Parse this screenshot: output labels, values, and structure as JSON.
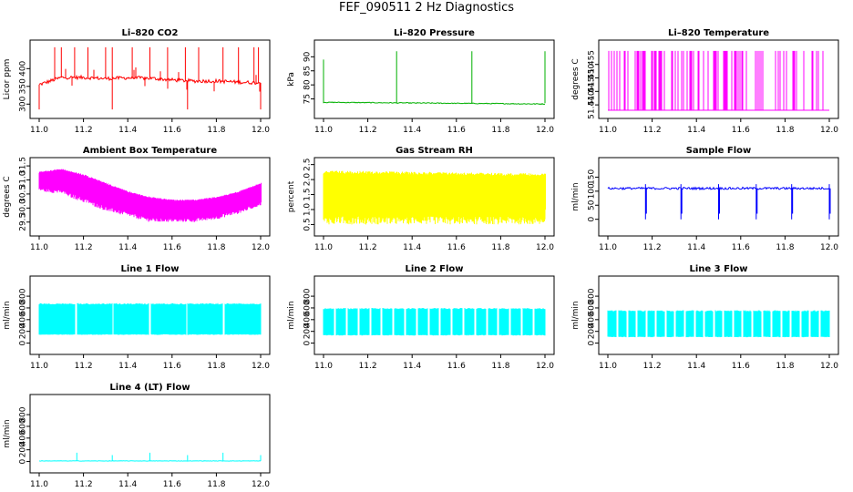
{
  "figure": {
    "title": "FEF_090511  2 Hz Diagnostics"
  },
  "chart_data": [
    {
      "id": "co2",
      "type": "line",
      "title": "Li–820 CO2",
      "xlabel": "",
      "ylabel": "Licor ppm",
      "xlim": [
        11.0,
        12.0
      ],
      "ylim": [
        275,
        465
      ],
      "xticks": [
        11.0,
        11.2,
        11.4,
        11.6,
        11.8,
        12.0
      ],
      "yticks": [
        300,
        350,
        400
      ],
      "color": "#ff0000",
      "signal": {
        "kind": "co2",
        "base": 355,
        "spread": 5,
        "spike_top": 460,
        "spike_low": 285
      },
      "series": [
        {
          "x": [
            11.0,
            11.1,
            11.2,
            11.3,
            11.4,
            11.5,
            11.6,
            11.7,
            11.8,
            11.9,
            12.0
          ],
          "values": [
            355,
            375,
            375,
            372,
            374,
            373,
            368,
            365,
            365,
            362,
            360
          ]
        }
      ]
    },
    {
      "id": "pressure",
      "type": "line",
      "title": "Li–820 Pressure",
      "xlabel": "",
      "ylabel": "kPa",
      "xlim": [
        11.0,
        12.0
      ],
      "ylim": [
        70,
        94
      ],
      "xticks": [
        11.0,
        11.2,
        11.4,
        11.6,
        11.8,
        12.0
      ],
      "yticks": [
        75,
        80,
        85,
        90
      ],
      "color": "#00b000",
      "signal": {
        "kind": "pressure",
        "base": 73.5,
        "spikes_x": [
          11.0,
          11.33,
          11.67,
          12.0
        ],
        "spike_top": 92
      },
      "series": [
        {
          "x": [
            11.0,
            12.0
          ],
          "values": [
            73.8,
            73.2
          ]
        }
      ]
    },
    {
      "id": "temperature",
      "type": "line",
      "title": "Li–820 Temperature",
      "xlabel": "",
      "ylabel": "degrees C",
      "xlim": [
        11.0,
        12.0
      ],
      "ylim": [
        51.437,
        51.462
      ],
      "xticks": [
        11.0,
        11.2,
        11.4,
        11.6,
        11.8,
        12.0
      ],
      "yticks": [
        51.44,
        51.445,
        51.45,
        51.455
      ],
      "color": "#ff00ff",
      "signal": {
        "kind": "binary",
        "low": 51.438,
        "high": 51.46
      },
      "series": [
        {
          "x": [
            11.0,
            12.0
          ],
          "values": [
            51.438,
            51.438
          ]
        }
      ]
    },
    {
      "id": "ambient",
      "type": "area",
      "title": "Ambient Box Temperature",
      "xlabel": "",
      "ylabel": "degrees C",
      "xlim": [
        11.0,
        12.0
      ],
      "ylim": [
        29.2,
        31.6
      ],
      "xticks": [
        11.0,
        11.2,
        11.4,
        11.6,
        11.8,
        12.0
      ],
      "yticks": [
        29.5,
        30.0,
        30.5,
        31.0,
        31.5
      ],
      "color": "#ff00ff",
      "signal": {
        "kind": "band"
      },
      "series": [
        {
          "x": [
            11.0,
            11.1,
            11.2,
            11.3,
            11.4,
            11.5,
            11.6,
            11.7,
            11.8,
            11.9,
            12.0
          ],
          "upper": [
            31.3,
            31.4,
            31.2,
            30.9,
            30.6,
            30.4,
            30.3,
            30.3,
            30.4,
            30.6,
            30.9
          ],
          "lower": [
            30.6,
            30.5,
            30.2,
            29.9,
            29.7,
            29.5,
            29.5,
            29.5,
            29.6,
            29.8,
            30.1
          ]
        }
      ]
    },
    {
      "id": "rh",
      "type": "area",
      "title": "Gas Stream RH",
      "xlabel": "",
      "ylabel": "percent",
      "xlim": [
        11.0,
        12.0
      ],
      "ylim": [
        0.3,
        2.55
      ],
      "xticks": [
        11.0,
        11.2,
        11.4,
        11.6,
        11.8,
        12.0
      ],
      "yticks": [
        0.5,
        1.0,
        1.5,
        2.0,
        2.5
      ],
      "color": "#ffff00",
      "signal": {
        "kind": "band"
      },
      "series": [
        {
          "x": [
            11.0,
            12.0
          ],
          "upper": [
            2.3,
            2.2
          ],
          "lower": [
            0.5,
            0.5
          ]
        }
      ]
    },
    {
      "id": "sample",
      "type": "line",
      "title": "Sample Flow",
      "xlabel": "",
      "ylabel": "ml/min",
      "xlim": [
        11.0,
        12.0
      ],
      "ylim": [
        -40,
        200
      ],
      "xticks": [
        11.0,
        11.2,
        11.4,
        11.6,
        11.8,
        12.0
      ],
      "yticks": [
        0,
        50,
        100,
        150
      ],
      "color": "#0000ff",
      "signal": {
        "kind": "sampleflow",
        "base": 110,
        "dips": [
          11.17,
          11.33,
          11.5,
          11.67,
          11.83,
          12.0
        ],
        "dip_low": 0
      },
      "series": [
        {
          "x": [
            11.0,
            12.0
          ],
          "values": [
            110,
            110
          ]
        }
      ]
    },
    {
      "id": "line1",
      "type": "area",
      "title": "Line 1 Flow",
      "xlabel": "",
      "ylabel": "ml/min",
      "xlim": [
        11.0,
        12.0
      ],
      "ylim": [
        -100,
        1050
      ],
      "xticks": [
        11.0,
        11.2,
        11.4,
        11.6,
        11.8,
        12.0
      ],
      "yticks": [
        0,
        200,
        400,
        600,
        800
      ],
      "color": "#00ffff",
      "signal": {
        "kind": "flowband",
        "upper": 680,
        "lower": 140,
        "gaps": 5
      },
      "series": [
        {
          "x": [
            11.0,
            12.0
          ],
          "upper": [
            680,
            680
          ],
          "lower": [
            140,
            140
          ]
        }
      ]
    },
    {
      "id": "line2",
      "type": "area",
      "title": "Line 2 Flow",
      "xlabel": "",
      "ylabel": "ml/min",
      "xlim": [
        11.0,
        12.0
      ],
      "ylim": [
        -100,
        1050
      ],
      "xticks": [
        11.0,
        11.2,
        11.4,
        11.6,
        11.8,
        12.0
      ],
      "yticks": [
        0,
        200,
        400,
        600,
        800
      ],
      "color": "#00ffff",
      "signal": {
        "kind": "flowband",
        "upper": 600,
        "lower": 130,
        "gaps": 18
      },
      "series": [
        {
          "x": [
            11.0,
            12.0
          ],
          "upper": [
            600,
            600
          ],
          "lower": [
            130,
            130
          ]
        }
      ]
    },
    {
      "id": "line3",
      "type": "area",
      "title": "Line 3 Flow",
      "xlabel": "",
      "ylabel": "ml/min",
      "xlim": [
        11.0,
        12.0
      ],
      "ylim": [
        -100,
        1050
      ],
      "xticks": [
        11.0,
        11.2,
        11.4,
        11.6,
        11.8,
        12.0
      ],
      "yticks": [
        0,
        200,
        400,
        600,
        800
      ],
      "color": "#00ffff",
      "signal": {
        "kind": "flowband",
        "upper": 560,
        "lower": 100,
        "gaps": 22
      },
      "series": [
        {
          "x": [
            11.0,
            12.0
          ],
          "upper": [
            560,
            560
          ],
          "lower": [
            100,
            100
          ]
        }
      ]
    },
    {
      "id": "line4",
      "type": "line",
      "title": "Line 4 (LT) Flow",
      "xlabel": "",
      "ylabel": "ml/min",
      "xlim": [
        11.0,
        12.0
      ],
      "ylim": [
        -100,
        1050
      ],
      "xticks": [
        11.0,
        11.2,
        11.4,
        11.6,
        11.8,
        12.0
      ],
      "yticks": [
        0,
        200,
        400,
        600,
        800
      ],
      "color": "#00ffff",
      "signal": {
        "kind": "lt",
        "base": 10,
        "spikes_x": [
          11.17,
          11.33,
          11.5,
          11.67,
          11.83,
          12.0
        ],
        "spike_top": 150
      },
      "series": [
        {
          "x": [
            11.0,
            12.0
          ],
          "values": [
            10,
            10
          ]
        }
      ]
    }
  ]
}
